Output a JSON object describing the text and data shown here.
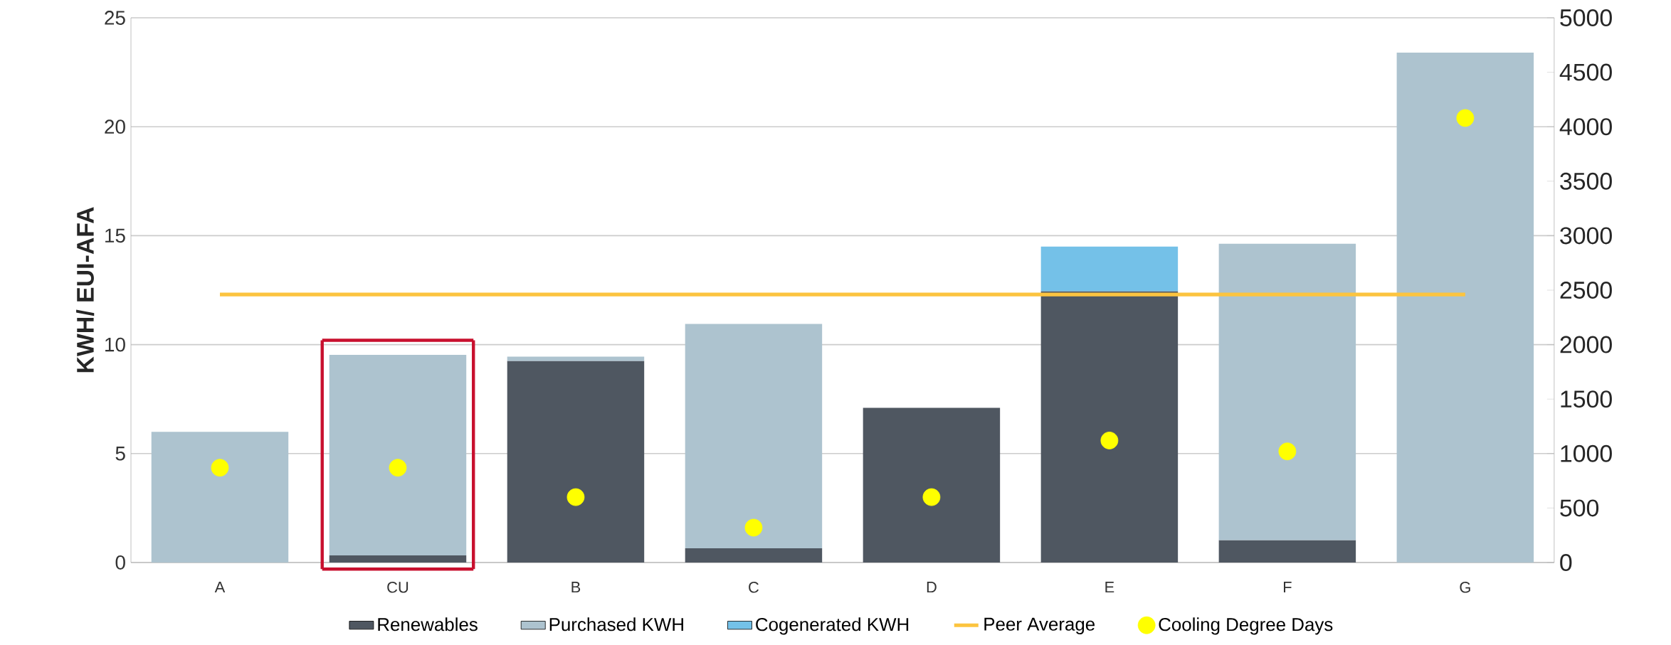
{
  "chart_data": {
    "type": "bar",
    "stacked": true,
    "ylabel": "KWH/ EUI-AFA",
    "categories": [
      "A",
      "CU",
      "B",
      "C",
      "D",
      "E",
      "F",
      "G"
    ],
    "series": [
      {
        "name": "Renewables",
        "color": "#4f5761",
        "values": [
          0,
          0.33,
          9.25,
          0.65,
          7.1,
          12.45,
          1.03,
          0
        ]
      },
      {
        "name": "Purchased KWH",
        "color": "#adc3cf",
        "values": [
          6.0,
          9.2,
          0.2,
          10.3,
          0,
          0,
          13.6,
          23.4
        ]
      },
      {
        "name": "Cogenerated KWH",
        "color": "#74c1e8",
        "values": [
          0,
          0,
          0,
          0,
          0,
          2.05,
          0,
          0
        ]
      },
      {
        "name": "Peer Average",
        "type": "line",
        "color": "#fcc43f",
        "line_style": "solid",
        "marker": "none",
        "values": [
          12.3,
          12.3,
          12.3,
          12.3,
          12.3,
          12.3,
          12.3,
          12.3
        ]
      },
      {
        "name": "Cooling Degree Days",
        "type": "scatter",
        "axis": "y2",
        "color": "#ffff00",
        "marker": "circle",
        "values": [
          870,
          870,
          600,
          320,
          600,
          1120,
          1020,
          4080
        ]
      }
    ],
    "ylim": [
      0,
      25
    ],
    "yticks": [
      0,
      5,
      10,
      15,
      20,
      25
    ],
    "y2lim": [
      0,
      5000
    ],
    "y2ticks": [
      0,
      500,
      1000,
      1500,
      2000,
      2500,
      3000,
      3500,
      4000,
      4500,
      5000
    ],
    "grid": "y",
    "legend": "bottom"
  }
}
